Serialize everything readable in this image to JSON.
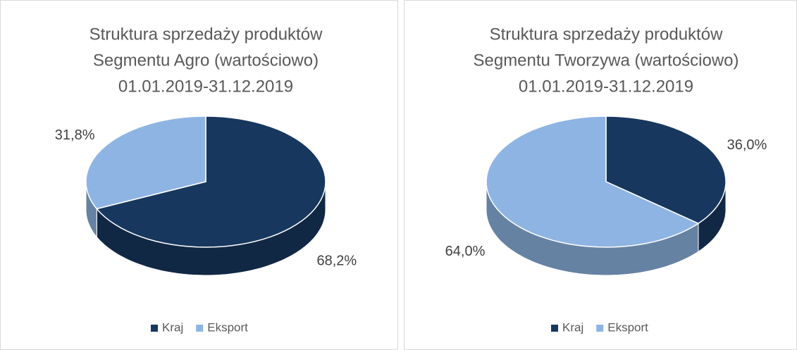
{
  "chart_data": [
    {
      "type": "pie",
      "title": [
        "Struktura sprzedaży produktów",
        "Segmentu Agro (wartościowo)",
        "01.01.2019-31.12.2019"
      ],
      "categories": [
        "Kraj",
        "Eksport"
      ],
      "values": [
        68.2,
        31.8
      ],
      "value_labels": [
        "68,2%",
        "31,8%"
      ],
      "colors": [
        "#17375e",
        "#8eb4e3"
      ],
      "legend": "bottom"
    },
    {
      "type": "pie",
      "title": [
        "Struktura sprzedaży produktów",
        "Segmentu Tworzywa (wartościowo)",
        "01.01.2019-31.12.2019"
      ],
      "categories": [
        "Kraj",
        "Eksport"
      ],
      "values": [
        36.0,
        64.0
      ],
      "value_labels": [
        "36,0%",
        "64,0%"
      ],
      "colors": [
        "#17375e",
        "#8eb4e3"
      ],
      "legend": "bottom"
    }
  ]
}
